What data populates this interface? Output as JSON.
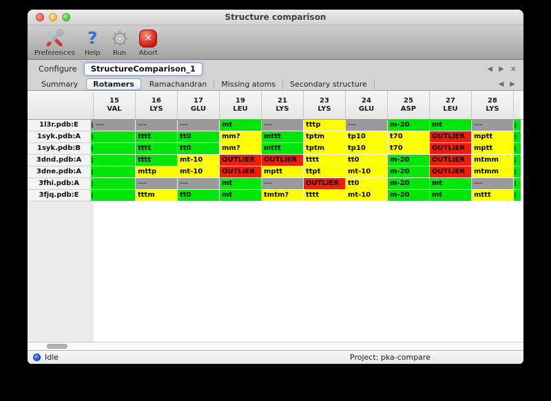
{
  "window": {
    "title": "Structure comparison"
  },
  "icons": {
    "back": "◀",
    "forward": "▶",
    "close": "✕",
    "abort_glyph": "✕"
  },
  "toolbar": {
    "items": [
      {
        "label": "Preferences",
        "icon": "tools-icon"
      },
      {
        "label": "Help",
        "icon": "question-icon",
        "glyph": "?"
      },
      {
        "label": "Run",
        "icon": "gear-icon"
      },
      {
        "label": "Abort",
        "icon": "abort-icon"
      }
    ]
  },
  "configure": {
    "label": "Configure",
    "value": "StructureComparison_1"
  },
  "tabs": {
    "items": [
      {
        "label": "Summary"
      },
      {
        "label": "Rotamers",
        "selected": true
      },
      {
        "label": "Ramachandran"
      },
      {
        "label": "Missing atoms"
      },
      {
        "label": "Secondary structure"
      }
    ]
  },
  "colors": {
    "green": "#00e60a",
    "yellow": "#ffff00",
    "red": "#f71b05",
    "gray": "#9a9a9a"
  },
  "table": {
    "columns": [
      {
        "num": "15",
        "res": "VAL"
      },
      {
        "num": "16",
        "res": "LYS"
      },
      {
        "num": "17",
        "res": "GLU"
      },
      {
        "num": "19",
        "res": "LEU"
      },
      {
        "num": "21",
        "res": "LYS"
      },
      {
        "num": "23",
        "res": "LYS"
      },
      {
        "num": "24",
        "res": "GLU"
      },
      {
        "num": "25",
        "res": "ASP"
      },
      {
        "num": "27",
        "res": "LEU"
      },
      {
        "num": "28",
        "res": "LYS"
      }
    ],
    "rows": [
      {
        "label": "1l3r.pdb:E",
        "notch": {
          "c": "gray",
          "clip": true
        },
        "edge": {
          "c": "green",
          "clip": true
        },
        "cells": [
          {
            "v": "---",
            "c": "gray"
          },
          {
            "v": "---",
            "c": "gray"
          },
          {
            "v": "---",
            "c": "gray"
          },
          {
            "v": "mt",
            "c": "green"
          },
          {
            "v": "---",
            "c": "gray"
          },
          {
            "v": "tttp",
            "c": "yellow"
          },
          {
            "v": "---",
            "c": "gray"
          },
          {
            "v": "m-20",
            "c": "green"
          },
          {
            "v": "mt",
            "c": "green"
          },
          {
            "v": "---",
            "c": "gray"
          }
        ]
      },
      {
        "label": "1syk.pdb:A",
        "notch": {
          "c": "green",
          "clip": true
        },
        "edge": {
          "c": "green",
          "clip": true
        },
        "cells": [
          {
            "v": "",
            "c": "green"
          },
          {
            "v": "tttt",
            "c": "green"
          },
          {
            "v": "tt0",
            "c": "green"
          },
          {
            "v": "mm?",
            "c": "yellow"
          },
          {
            "v": "mttt",
            "c": "green"
          },
          {
            "v": "tptm",
            "c": "yellow"
          },
          {
            "v": "tp10",
            "c": "yellow"
          },
          {
            "v": "t70",
            "c": "yellow"
          },
          {
            "v": "OUTLIER",
            "c": "red"
          },
          {
            "v": "mptt",
            "c": "yellow"
          }
        ]
      },
      {
        "label": "1syk.pdb:B",
        "notch": {
          "c": "green",
          "clip": true
        },
        "edge": {
          "c": "green",
          "clip": true
        },
        "cells": [
          {
            "v": "",
            "c": "green"
          },
          {
            "v": "tttt",
            "c": "green"
          },
          {
            "v": "tt0",
            "c": "green"
          },
          {
            "v": "mm?",
            "c": "yellow"
          },
          {
            "v": "mttt",
            "c": "green"
          },
          {
            "v": "tptm",
            "c": "yellow"
          },
          {
            "v": "tp10",
            "c": "yellow"
          },
          {
            "v": "t70",
            "c": "yellow"
          },
          {
            "v": "OUTLIER",
            "c": "red"
          },
          {
            "v": "mptt",
            "c": "yellow"
          }
        ]
      },
      {
        "label": "3dnd.pdb:A",
        "notch": {
          "c": "green",
          "clip": true
        },
        "edge": {
          "c": "green",
          "clip": true
        },
        "cells": [
          {
            "v": "",
            "c": "green"
          },
          {
            "v": "tttt",
            "c": "green"
          },
          {
            "v": "mt-10",
            "c": "yellow"
          },
          {
            "v": "OUTLIER",
            "c": "red"
          },
          {
            "v": "OUTLIER",
            "c": "red"
          },
          {
            "v": "tttt",
            "c": "yellow"
          },
          {
            "v": "tt0",
            "c": "yellow"
          },
          {
            "v": "m-20",
            "c": "green"
          },
          {
            "v": "OUTLIER",
            "c": "red"
          },
          {
            "v": "mtmm",
            "c": "yellow"
          }
        ]
      },
      {
        "label": "3dne.pdb:A",
        "notch": {
          "c": "green",
          "clip": true
        },
        "edge": {
          "c": "green",
          "clip": true
        },
        "cells": [
          {
            "v": "",
            "c": "green"
          },
          {
            "v": "mttp",
            "c": "yellow"
          },
          {
            "v": "mt-10",
            "c": "yellow"
          },
          {
            "v": "OUTLIER",
            "c": "red"
          },
          {
            "v": "mptt",
            "c": "yellow"
          },
          {
            "v": "ttpt",
            "c": "yellow"
          },
          {
            "v": "mt-10",
            "c": "yellow"
          },
          {
            "v": "m-20",
            "c": "green"
          },
          {
            "v": "OUTLIER",
            "c": "red"
          },
          {
            "v": "mtmm",
            "c": "yellow"
          }
        ]
      },
      {
        "label": "3fhi.pdb:A",
        "notch": {
          "c": "green",
          "clip": true
        },
        "edge": {
          "c": "green",
          "clip": true
        },
        "cells": [
          {
            "v": "",
            "c": "green"
          },
          {
            "v": "---",
            "c": "gray"
          },
          {
            "v": "---",
            "c": "gray"
          },
          {
            "v": "mt",
            "c": "green"
          },
          {
            "v": "---",
            "c": "gray"
          },
          {
            "v": "OUTLIER",
            "c": "red"
          },
          {
            "v": "tt0",
            "c": "yellow"
          },
          {
            "v": "m-20",
            "c": "green"
          },
          {
            "v": "mt",
            "c": "green"
          },
          {
            "v": "---",
            "c": "gray"
          }
        ]
      },
      {
        "label": "3fjq.pdb:E",
        "notch": {
          "c": "green",
          "clip": true
        },
        "edge": {
          "c": "green",
          "clip": true
        },
        "cells": [
          {
            "v": "",
            "c": "green"
          },
          {
            "v": "tttm",
            "c": "yellow"
          },
          {
            "v": "tt0",
            "c": "green"
          },
          {
            "v": "mt",
            "c": "green"
          },
          {
            "v": "tmtm?",
            "c": "yellow"
          },
          {
            "v": "tttt",
            "c": "yellow"
          },
          {
            "v": "mt-10",
            "c": "yellow"
          },
          {
            "v": "m-20",
            "c": "green"
          },
          {
            "v": "mt",
            "c": "green"
          },
          {
            "v": "mttt",
            "c": "yellow"
          }
        ]
      }
    ]
  },
  "status": {
    "state": "Idle",
    "project": "Project: pka-compare"
  }
}
